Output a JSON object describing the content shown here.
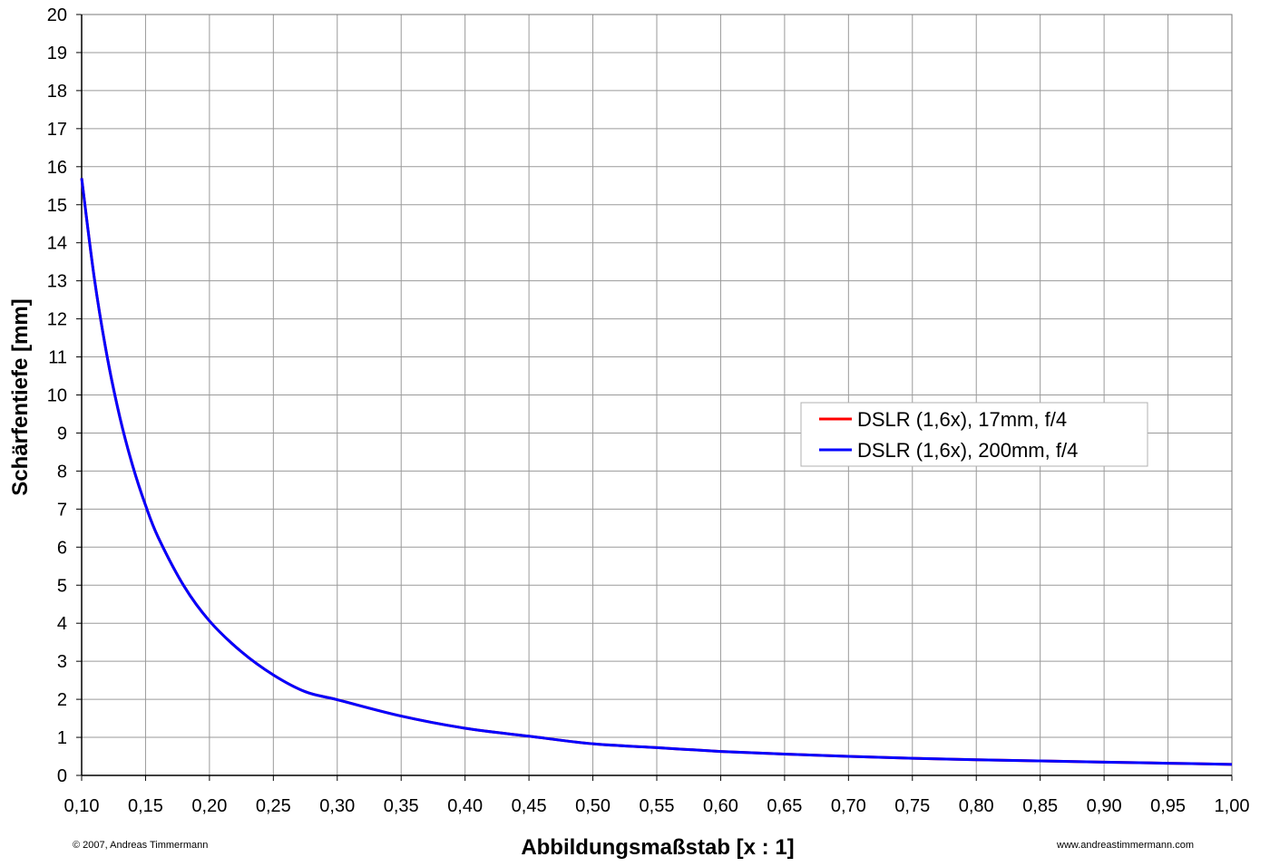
{
  "chart_data": {
    "type": "line",
    "title": "",
    "xlabel": "Abbildungsmaßstab [x : 1]",
    "ylabel": "Schärfentiefe [mm]",
    "xlim": [
      0.1,
      1.0
    ],
    "ylim": [
      0,
      20
    ],
    "grid": true,
    "legend_position": "right",
    "x_tick_labels": [
      "0,10",
      "0,15",
      "0,20",
      "0,25",
      "0,30",
      "0,35",
      "0,40",
      "0,45",
      "0,50",
      "0,55",
      "0,60",
      "0,65",
      "0,70",
      "0,75",
      "0,80",
      "0,85",
      "0,90",
      "0,95",
      "1,00"
    ],
    "y_tick_labels": [
      "0",
      "1",
      "2",
      "3",
      "4",
      "5",
      "6",
      "7",
      "8",
      "9",
      "10",
      "11",
      "12",
      "13",
      "14",
      "15",
      "16",
      "17",
      "18",
      "19",
      "20"
    ],
    "x": [
      0.1,
      0.11,
      0.12,
      0.13,
      0.14,
      0.15,
      0.16,
      0.18,
      0.2,
      0.225,
      0.25,
      0.275,
      0.3,
      0.35,
      0.4,
      0.45,
      0.5,
      0.55,
      0.6,
      0.65,
      0.7,
      0.75,
      0.8,
      0.85,
      0.9,
      0.95,
      1.0
    ],
    "series": [
      {
        "name": "DSLR (1,6x), 17mm, f/4",
        "color": "#ff0000",
        "values": [
          15.7,
          13.05,
          11.0,
          9.4,
          8.13,
          7.1,
          6.25,
          4.98,
          4.06,
          3.25,
          2.64,
          2.2,
          1.99,
          1.56,
          1.24,
          1.03,
          0.83,
          0.73,
          0.63,
          0.56,
          0.5,
          0.45,
          0.41,
          0.38,
          0.35,
          0.32,
          0.29
        ]
      },
      {
        "name": "DSLR (1,6x), 200mm, f/4",
        "color": "#0000ff",
        "values": [
          15.7,
          13.05,
          11.0,
          9.4,
          8.13,
          7.1,
          6.25,
          4.98,
          4.06,
          3.25,
          2.64,
          2.2,
          1.99,
          1.56,
          1.24,
          1.03,
          0.83,
          0.73,
          0.63,
          0.56,
          0.5,
          0.45,
          0.41,
          0.38,
          0.35,
          0.32,
          0.29
        ]
      }
    ]
  },
  "footer": {
    "copyright": "© 2007, Andreas Timmermann",
    "website": "www.andreastimmermann.com"
  }
}
